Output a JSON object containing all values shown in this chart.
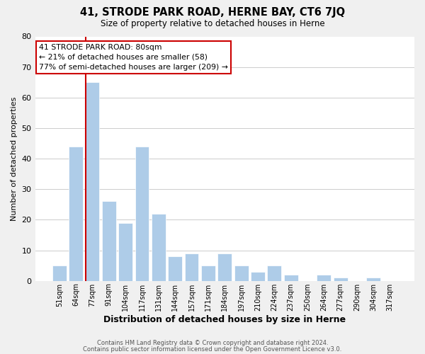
{
  "title": "41, STRODE PARK ROAD, HERNE BAY, CT6 7JQ",
  "subtitle": "Size of property relative to detached houses in Herne",
  "xlabel": "Distribution of detached houses by size in Herne",
  "ylabel": "Number of detached properties",
  "bar_labels": [
    "51sqm",
    "64sqm",
    "77sqm",
    "91sqm",
    "104sqm",
    "117sqm",
    "131sqm",
    "144sqm",
    "157sqm",
    "171sqm",
    "184sqm",
    "197sqm",
    "210sqm",
    "224sqm",
    "237sqm",
    "250sqm",
    "264sqm",
    "277sqm",
    "290sqm",
    "304sqm",
    "317sqm"
  ],
  "bar_values": [
    5,
    44,
    65,
    26,
    19,
    44,
    22,
    8,
    9,
    5,
    9,
    5,
    3,
    5,
    2,
    0,
    2,
    1,
    0,
    1,
    0
  ],
  "bar_color": "#aecce8",
  "bar_edge_color": "#ffffff",
  "vline_color": "#cc0000",
  "ylim": [
    0,
    80
  ],
  "yticks": [
    0,
    10,
    20,
    30,
    40,
    50,
    60,
    70,
    80
  ],
  "annotation_title": "41 STRODE PARK ROAD: 80sqm",
  "annotation_line1": "← 21% of detached houses are smaller (58)",
  "annotation_line2": "77% of semi-detached houses are larger (209) →",
  "annotation_box_color": "#ffffff",
  "annotation_box_edge": "#cc0000",
  "footer1": "Contains HM Land Registry data © Crown copyright and database right 2024.",
  "footer2": "Contains public sector information licensed under the Open Government Licence v3.0.",
  "grid_color": "#cccccc",
  "background_color": "#f0f0f0",
  "plot_bg_color": "#ffffff"
}
